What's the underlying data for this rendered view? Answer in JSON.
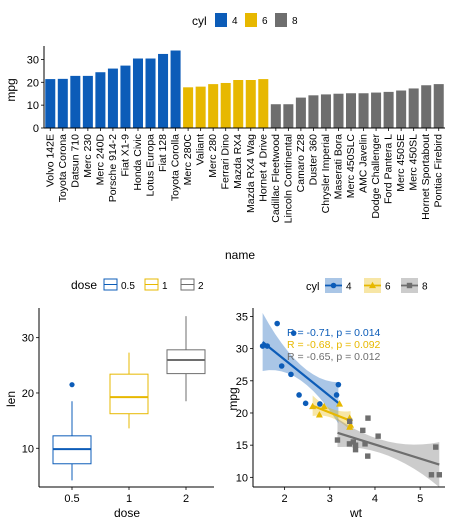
{
  "colors": {
    "c4": "#0C5CB8",
    "c6": "#E7B800",
    "c8": "#6E6E6E",
    "axis": "#000000"
  },
  "chart_data": [
    {
      "type": "bar",
      "title": "",
      "xlabel": "name",
      "ylabel": "mpg",
      "ylim": [
        0,
        35
      ],
      "yticks": [
        0,
        10,
        20,
        30
      ],
      "grid": false,
      "legend": {
        "title": "cyl",
        "position": "top",
        "entries": [
          "4",
          "6",
          "8"
        ]
      },
      "categories": [
        "Volvo 142E",
        "Toyota Corona",
        "Datsun 710",
        "Merc 230",
        "Merc 240D",
        "Porsche 914-2",
        "Fiat X1-9",
        "Honda Civic",
        "Lotus Europa",
        "Fiat 128",
        "Toyota Corolla",
        "Merc 280C",
        "Valiant",
        "Merc 280",
        "Ferrari Dino",
        "Mazda RX4",
        "Mazda RX4 Wag",
        "Hornet 4 Drive",
        "Cadillac Fleetwood",
        "Lincoln Continental",
        "Camaro Z28",
        "Duster 360",
        "Chrysler Imperial",
        "Maserati Bora",
        "Merc 450SLC",
        "AMC Javelin",
        "Dodge Challenger",
        "Ford Pantera L",
        "Merc 450SE",
        "Merc 450SL",
        "Hornet Sportabout",
        "Pontiac Firebird"
      ],
      "values": [
        21.4,
        21.5,
        22.8,
        22.8,
        24.4,
        26.0,
        27.3,
        30.4,
        30.4,
        32.4,
        33.9,
        17.8,
        18.1,
        19.2,
        19.7,
        21.0,
        21.0,
        21.4,
        10.4,
        10.4,
        13.3,
        14.3,
        14.7,
        15.0,
        15.2,
        15.2,
        15.5,
        15.8,
        16.4,
        17.3,
        18.7,
        19.2
      ],
      "groups": [
        "4",
        "4",
        "4",
        "4",
        "4",
        "4",
        "4",
        "4",
        "4",
        "4",
        "4",
        "6",
        "6",
        "6",
        "6",
        "6",
        "6",
        "6",
        "8",
        "8",
        "8",
        "8",
        "8",
        "8",
        "8",
        "8",
        "8",
        "8",
        "8",
        "8",
        "8",
        "8"
      ]
    },
    {
      "type": "box",
      "title": "",
      "xlabel": "dose",
      "ylabel": "len",
      "ylim": [
        3,
        35
      ],
      "yticks": [
        10,
        20,
        30
      ],
      "grid": false,
      "legend": {
        "title": "dose",
        "position": "top",
        "entries": [
          "0.5",
          "1",
          "2"
        ]
      },
      "categories": [
        "0.5",
        "1",
        "2"
      ],
      "boxes": [
        {
          "name": "0.5",
          "min": 4.2,
          "q1": 7.2,
          "median": 9.85,
          "q3": 12.25,
          "max": 18.5,
          "outliers": [
            21.5
          ]
        },
        {
          "name": "1",
          "min": 13.6,
          "q1": 16.25,
          "median": 19.25,
          "q3": 23.4,
          "max": 27.3,
          "outliers": []
        },
        {
          "name": "2",
          "min": 18.5,
          "q1": 23.5,
          "median": 25.95,
          "q3": 27.8,
          "max": 33.9,
          "outliers": []
        }
      ]
    },
    {
      "type": "scatter",
      "title": "",
      "xlabel": "wt",
      "ylabel": "mpg",
      "xlim": [
        1.3,
        5.55
      ],
      "ylim": [
        8.5,
        36
      ],
      "xticks": [
        2,
        3,
        4,
        5
      ],
      "yticks": [
        10,
        15,
        20,
        25,
        30,
        35
      ],
      "grid": false,
      "legend": {
        "title": "cyl",
        "position": "top",
        "entries": [
          "4",
          "6",
          "8"
        ]
      },
      "annotations": [
        {
          "group": "4",
          "text": "R = -0.71, p = 0.014"
        },
        {
          "group": "6",
          "text": "R = -0.68, p = 0.092"
        },
        {
          "group": "8",
          "text": "R = -0.65, p = 0.012"
        }
      ],
      "series": [
        {
          "name": "4",
          "marker": "circle",
          "x": [
            2.32,
            3.19,
            3.15,
            2.2,
            1.615,
            1.835,
            2.465,
            1.935,
            2.14,
            1.513,
            2.78
          ],
          "y": [
            22.8,
            24.4,
            22.8,
            32.4,
            30.4,
            33.9,
            21.5,
            27.3,
            26.0,
            30.4,
            21.4
          ],
          "fit": {
            "slope": -5.647,
            "intercept": 39.571,
            "x0": 1.513,
            "x1": 3.19,
            "se_band": [
              4.5,
              1.2,
              3.2
            ]
          }
        },
        {
          "name": "6",
          "marker": "triangle",
          "x": [
            2.62,
            2.875,
            3.215,
            3.46,
            3.44,
            3.44,
            2.77
          ],
          "y": [
            21.0,
            21.0,
            21.4,
            18.1,
            19.2,
            17.8,
            19.7
          ],
          "fit": {
            "slope": -2.78,
            "intercept": 28.409,
            "x0": 2.62,
            "x1": 3.46,
            "se_band": [
              1.6,
              0.7,
              1.5
            ]
          }
        },
        {
          "name": "8",
          "marker": "square",
          "x": [
            3.44,
            3.57,
            4.07,
            3.73,
            3.78,
            5.25,
            5.424,
            5.345,
            3.52,
            3.435,
            3.84,
            3.845,
            3.17,
            3.57
          ],
          "y": [
            18.7,
            14.3,
            16.4,
            17.3,
            15.2,
            10.4,
            10.4,
            14.7,
            15.5,
            15.2,
            13.3,
            19.2,
            15.8,
            15.0
          ],
          "fit": {
            "slope": -2.192,
            "intercept": 23.868,
            "x0": 3.17,
            "x1": 5.424,
            "se_band": [
              2.2,
              1.1,
              3.5
            ]
          }
        }
      ]
    }
  ]
}
